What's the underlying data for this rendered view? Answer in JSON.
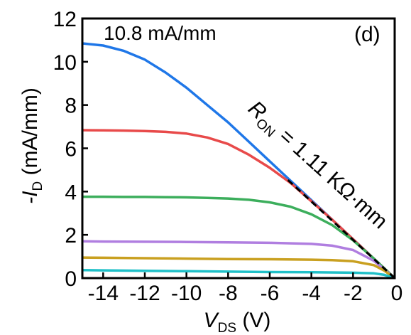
{
  "chart_data": {
    "type": "line",
    "panel_label": "(d)",
    "annotation_max": "10.8 mA/mm",
    "ron": {
      "symbol": "R",
      "subscript": "ON",
      "text": " = 1.11 KΩ·mm"
    },
    "xlabel": {
      "symbol": "V",
      "subscript": "DS",
      "unit": " (V)"
    },
    "ylabel": {
      "prefix": "-I",
      "subscript": "D",
      "unit": " (mA/mm)"
    },
    "xlim": [
      -15,
      0
    ],
    "ylim": [
      0,
      12
    ],
    "xticks": [
      -14,
      -12,
      -10,
      -8,
      -6,
      -4,
      -2,
      0
    ],
    "yticks": [
      0,
      2,
      4,
      6,
      8,
      10,
      12
    ],
    "ron_line": {
      "x": [
        0,
        -5.2
      ],
      "y": [
        0,
        4.6
      ]
    },
    "series": [
      {
        "color": "#1f77e8",
        "x": [
          0,
          -0.5,
          -1,
          -2,
          -3,
          -4,
          -5,
          -6,
          -7,
          -8,
          -9,
          -10,
          -11,
          -12,
          -13,
          -14,
          -15
        ],
        "y": [
          0,
          0.45,
          0.9,
          1.8,
          2.7,
          3.6,
          4.5,
          5.4,
          6.3,
          7.2,
          8.0,
          8.8,
          9.5,
          10.1,
          10.5,
          10.75,
          10.85
        ]
      },
      {
        "color": "#e84a4a",
        "x": [
          0,
          -0.5,
          -1,
          -2,
          -3,
          -4,
          -5,
          -6,
          -7,
          -8,
          -9,
          -10,
          -11,
          -12,
          -13,
          -14,
          -15
        ],
        "y": [
          0,
          0.45,
          0.9,
          1.8,
          2.7,
          3.55,
          4.4,
          5.1,
          5.7,
          6.2,
          6.5,
          6.68,
          6.76,
          6.8,
          6.82,
          6.83,
          6.84
        ]
      },
      {
        "color": "#3cae5c",
        "x": [
          0,
          -0.5,
          -1,
          -2,
          -3,
          -4,
          -5,
          -6,
          -7,
          -8,
          -9,
          -10,
          -11,
          -12,
          -13,
          -14,
          -15
        ],
        "y": [
          0,
          0.45,
          0.9,
          1.75,
          2.45,
          2.95,
          3.3,
          3.5,
          3.62,
          3.68,
          3.71,
          3.73,
          3.74,
          3.75,
          3.75,
          3.76,
          3.76
        ]
      },
      {
        "color": "#b07ee0",
        "x": [
          0,
          -0.5,
          -1,
          -2,
          -3,
          -4,
          -6,
          -8,
          -10,
          -12,
          -14,
          -15
        ],
        "y": [
          0,
          0.4,
          0.8,
          1.3,
          1.5,
          1.58,
          1.63,
          1.65,
          1.67,
          1.68,
          1.69,
          1.7
        ]
      },
      {
        "color": "#c9a020",
        "x": [
          0,
          -0.5,
          -1,
          -2,
          -3,
          -4,
          -6,
          -8,
          -10,
          -12,
          -14,
          -15
        ],
        "y": [
          0,
          0.35,
          0.6,
          0.78,
          0.83,
          0.85,
          0.87,
          0.88,
          0.9,
          0.92,
          0.94,
          0.95
        ]
      },
      {
        "color": "#20c0c8",
        "x": [
          0,
          -0.5,
          -1,
          -2,
          -4,
          -6,
          -8,
          -10,
          -12,
          -14,
          -15
        ],
        "y": [
          0,
          0.15,
          0.22,
          0.25,
          0.27,
          0.28,
          0.3,
          0.32,
          0.34,
          0.36,
          0.37
        ]
      }
    ]
  }
}
